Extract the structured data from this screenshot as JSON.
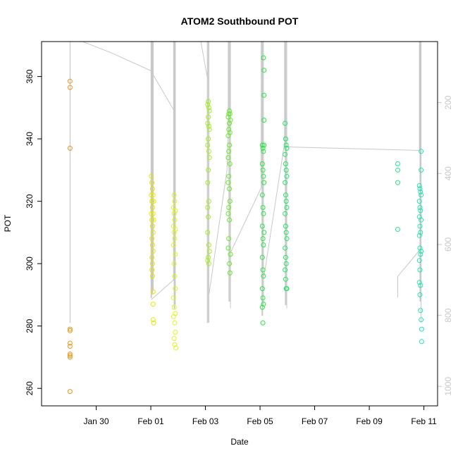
{
  "chart_data": {
    "type": "scatter",
    "title": "ATOM2 Southbound POT",
    "xlabel": "Date",
    "ylabel": "POT",
    "ylabel_right": "",
    "xlim": [
      "2024-01-28T00:00",
      "2024-02-11T12:00"
    ],
    "ylim": [
      254.4,
      371.2
    ],
    "ylim_right": [
      1055,
      28
    ],
    "x_ticks": [
      {
        "x": "2024-01-30",
        "label": "Jan 30"
      },
      {
        "x": "2024-02-01",
        "label": "Feb 01"
      },
      {
        "x": "2024-02-03",
        "label": "Feb 03"
      },
      {
        "x": "2024-02-05",
        "label": "Feb 05"
      },
      {
        "x": "2024-02-07",
        "label": "Feb 07"
      },
      {
        "x": "2024-02-09",
        "label": "Feb 09"
      },
      {
        "x": "2024-02-11",
        "label": "Feb 11"
      }
    ],
    "y_ticks": [
      260,
      280,
      300,
      320,
      340,
      360
    ],
    "y_ticks_right": [
      200,
      400,
      600,
      800,
      1000
    ],
    "grid": false,
    "legend": "none",
    "point_color_note": "points colored by time (orange to cyan)",
    "series": [
      {
        "color": "#e8961e",
        "x": [
          "2024-01-29T01:00",
          "2024-01-29T01:00",
          "2024-01-29T01:00",
          "2024-01-29T01:00",
          "2024-01-29T01:00",
          "2024-01-29T01:00",
          "2024-01-29T01:00",
          "2024-01-29T01:00",
          "2024-01-29T01:00",
          "2024-01-29T01:00",
          "2024-01-29T01:00"
        ],
        "y": [
          358.5,
          356.5,
          337,
          279,
          278.5,
          274.5,
          273.5,
          271,
          270,
          270.5,
          259
        ]
      },
      {
        "color": "#e6e600",
        "x": [
          "2024-02-01T00:30",
          "2024-02-01T00:30",
          "2024-02-01T00:30",
          "2024-02-01T01:00",
          "2024-02-01T01:00",
          "2024-02-01T01:00",
          "2024-02-01T01:00",
          "2024-02-01T01:00",
          "2024-02-01T01:00",
          "2024-02-01T01:30",
          "2024-02-01T01:30",
          "2024-02-01T01:30",
          "2024-02-01T01:30",
          "2024-02-01T01:30",
          "2024-02-01T01:30",
          "2024-02-01T02:00",
          "2024-02-01T02:00",
          "2024-02-01T02:00",
          "2024-02-01T02:00",
          "2024-02-01T02:00",
          "2024-02-01T02:00",
          "2024-02-01T02:00",
          "2024-02-01T02:30",
          "2024-02-01T02:30",
          "2024-02-01T02:30"
        ],
        "y": [
          328,
          322,
          316,
          326,
          320,
          314,
          308,
          302,
          298,
          324,
          318,
          312,
          306,
          300,
          296,
          322,
          316,
          310,
          304,
          291,
          287,
          282,
          320,
          314,
          281
        ]
      },
      {
        "color": "#dcf51e",
        "x": [
          "2024-02-01T20:00",
          "2024-02-01T20:00",
          "2024-02-01T20:00",
          "2024-02-01T20:00",
          "2024-02-01T20:00",
          "2024-02-01T20:30",
          "2024-02-01T20:30",
          "2024-02-01T20:30",
          "2024-02-01T20:30",
          "2024-02-01T20:30",
          "2024-02-01T20:30",
          "2024-02-01T21:00",
          "2024-02-01T21:00",
          "2024-02-01T21:00",
          "2024-02-01T21:00",
          "2024-02-01T21:00",
          "2024-02-01T21:00",
          "2024-02-01T21:30",
          "2024-02-01T21:30",
          "2024-02-01T21:30",
          "2024-02-01T21:30",
          "2024-02-01T21:30",
          "2024-02-01T21:30",
          "2024-02-01T22:00"
        ],
        "y": [
          318,
          312,
          306,
          289,
          283,
          322,
          316,
          310,
          300,
          286,
          276,
          320,
          314,
          308,
          296,
          281,
          274,
          317,
          311,
          303,
          292,
          284,
          278,
          273
        ]
      },
      {
        "color": "#a0f01e",
        "x": [
          "2024-02-03T02:00",
          "2024-02-03T02:00",
          "2024-02-03T02:00",
          "2024-02-03T02:00",
          "2024-02-03T02:00",
          "2024-02-03T02:00",
          "2024-02-03T02:00",
          "2024-02-03T02:30",
          "2024-02-03T02:30",
          "2024-02-03T02:30",
          "2024-02-03T02:30",
          "2024-02-03T02:30",
          "2024-02-03T02:30",
          "2024-02-03T03:00",
          "2024-02-03T03:00",
          "2024-02-03T03:00",
          "2024-02-03T03:00",
          "2024-02-03T03:00",
          "2024-02-03T03:00",
          "2024-02-03T03:30",
          "2024-02-03T03:30",
          "2024-02-03T03:30",
          "2024-02-03T03:30"
        ],
        "y": [
          351,
          345,
          338,
          326,
          318,
          310,
          301,
          352,
          347,
          340,
          330,
          315,
          302,
          350,
          344,
          336,
          320,
          306,
          300,
          349,
          343,
          334,
          304
        ]
      },
      {
        "color": "#64eb28",
        "x": [
          "2024-02-03T20:00",
          "2024-02-03T20:00",
          "2024-02-03T20:00",
          "2024-02-03T20:00",
          "2024-02-03T20:00",
          "2024-02-03T20:00",
          "2024-02-03T20:30",
          "2024-02-03T20:30",
          "2024-02-03T20:30",
          "2024-02-03T20:30",
          "2024-02-03T20:30",
          "2024-02-03T20:30",
          "2024-02-03T21:00",
          "2024-02-03T21:00",
          "2024-02-03T21:00",
          "2024-02-03T21:00",
          "2024-02-03T21:00",
          "2024-02-03T21:00",
          "2024-02-03T21:30",
          "2024-02-03T21:30",
          "2024-02-03T21:30",
          "2024-02-03T21:30",
          "2024-02-03T21:30",
          "2024-02-03T22:00",
          "2024-02-03T22:00"
        ],
        "y": [
          347,
          341,
          334,
          326,
          316,
          305,
          348,
          343,
          336,
          328,
          318,
          308,
          349,
          345,
          338,
          324,
          314,
          300,
          348,
          342,
          332,
          320,
          297,
          346,
          303
        ]
      },
      {
        "color": "#28e646",
        "x": [
          "2024-02-05T02:00",
          "2024-02-05T02:00",
          "2024-02-05T02:00",
          "2024-02-05T02:00",
          "2024-02-05T02:00",
          "2024-02-05T02:00",
          "2024-02-05T02:00",
          "2024-02-05T02:30",
          "2024-02-05T02:30",
          "2024-02-05T02:30",
          "2024-02-05T02:30",
          "2024-02-05T02:30",
          "2024-02-05T02:30",
          "2024-02-05T02:30",
          "2024-02-05T03:00",
          "2024-02-05T03:00",
          "2024-02-05T03:00",
          "2024-02-05T03:00",
          "2024-02-05T03:00",
          "2024-02-05T03:00",
          "2024-02-05T03:00",
          "2024-02-05T03:30",
          "2024-02-05T03:30",
          "2024-02-05T03:30",
          "2024-02-05T03:30",
          "2024-02-05T03:30",
          "2024-02-05T03:30"
        ],
        "y": [
          338,
          332,
          322,
          312,
          302,
          292,
          286,
          337,
          330,
          318,
          308,
          298,
          289,
          281,
          336,
          328,
          316,
          306,
          296,
          287,
          366,
          362,
          354,
          346,
          338,
          326,
          310
        ]
      },
      {
        "color": "#1ee664",
        "x": [
          "2024-02-05T22:00",
          "2024-02-05T22:00",
          "2024-02-05T22:00",
          "2024-02-05T22:00",
          "2024-02-05T22:00",
          "2024-02-05T22:00",
          "2024-02-05T22:30",
          "2024-02-05T22:30",
          "2024-02-05T22:30",
          "2024-02-05T22:30",
          "2024-02-05T22:30",
          "2024-02-05T22:30",
          "2024-02-05T23:00",
          "2024-02-05T23:00",
          "2024-02-05T23:00",
          "2024-02-05T23:00",
          "2024-02-05T23:00",
          "2024-02-05T23:00",
          "2024-02-05T23:30",
          "2024-02-05T23:30",
          "2024-02-05T23:30",
          "2024-02-05T23:30",
          "2024-02-05T23:30"
        ],
        "y": [
          345,
          335,
          326,
          316,
          305,
          298,
          340,
          332,
          322,
          312,
          302,
          295,
          338,
          330,
          320,
          310,
          300,
          292,
          337,
          328,
          318,
          308,
          292
        ]
      },
      {
        "color": "#28e68c",
        "x": [
          "2024-02-10T01:00",
          "2024-02-10T01:00",
          "2024-02-10T01:00",
          "2024-02-10T01:00"
        ],
        "y": [
          332,
          330,
          326,
          311
        ]
      },
      {
        "color": "#1ee6b4",
        "x": [
          "2024-02-10T20:00",
          "2024-02-10T20:00",
          "2024-02-10T20:00",
          "2024-02-10T20:00",
          "2024-02-10T20:00",
          "2024-02-10T20:00",
          "2024-02-10T20:30",
          "2024-02-10T20:30",
          "2024-02-10T20:30",
          "2024-02-10T20:30",
          "2024-02-10T20:30",
          "2024-02-10T20:30",
          "2024-02-10T21:00",
          "2024-02-10T21:00",
          "2024-02-10T21:00",
          "2024-02-10T21:00",
          "2024-02-10T21:00",
          "2024-02-10T21:00",
          "2024-02-10T21:30",
          "2024-02-10T21:30",
          "2024-02-10T21:30",
          "2024-02-10T21:30",
          "2024-02-10T21:30",
          "2024-02-10T21:30",
          "2024-02-10T22:00",
          "2024-02-10T22:00"
        ],
        "y": [
          325,
          320,
          315,
          309,
          301,
          294,
          324,
          318,
          312,
          305,
          298,
          290,
          323,
          317,
          310,
          303,
          293,
          285,
          336,
          330,
          322,
          314,
          304,
          282,
          275,
          279
        ]
      }
    ],
    "profile_lines": [
      {
        "color": "#c8c8c8",
        "x": [
          "2024-01-29T01:00",
          "2024-01-29T01:00",
          "2024-01-29T01:10",
          "2024-01-29T01:10"
        ],
        "y_right": [
          28,
          820,
          820,
          28
        ]
      },
      {
        "color": "#c8c8c8",
        "x": [
          "2024-01-29T12:00",
          "2024-01-30T12:00",
          "2024-02-01T00:00",
          "2024-02-01T20:00"
        ],
        "y_right": [
          28,
          58,
          110,
          220
        ]
      },
      {
        "color": "#c8c8c8",
        "x": [
          "2024-02-01T00:10",
          "2024-02-01T00:10",
          "2024-02-01T00:40",
          "2024-02-01T00:40",
          "2024-02-01T01:10",
          "2024-02-01T01:10",
          "2024-02-01T01:40",
          "2024-02-01T01:40",
          "2024-02-01T02:10",
          "2024-02-01T02:10"
        ],
        "y_right": [
          28,
          750,
          750,
          28,
          28,
          740,
          740,
          28,
          28,
          730
        ]
      },
      {
        "color": "#c8c8c8",
        "x": [
          "2024-02-01T00:30",
          "2024-02-01T20:00",
          "2024-02-01T20:00",
          "2024-02-01T20:30",
          "2024-02-01T20:30",
          "2024-02-01T21:00",
          "2024-02-01T21:00",
          "2024-02-01T21:30",
          "2024-02-01T21:30"
        ],
        "y_right": [
          755,
          700,
          28,
          28,
          780,
          780,
          28,
          28,
          770
        ]
      },
      {
        "color": "#c8c8c8",
        "x": [
          "2024-02-01T22:00",
          "2024-02-02T20:00",
          "2024-02-03T01:30"
        ],
        "y_right": [
          28,
          28,
          128
        ]
      },
      {
        "color": "#c8c8c8",
        "x": [
          "2024-02-03T01:40",
          "2024-02-03T01:40",
          "2024-02-03T02:20",
          "2024-02-03T02:20",
          "2024-02-03T03:00",
          "2024-02-03T03:00"
        ],
        "y_right": [
          28,
          820,
          820,
          28,
          28,
          820
        ]
      },
      {
        "color": "#c8c8c8",
        "x": [
          "2024-02-03T03:10",
          "2024-02-03T19:00",
          "2024-02-03T20:00",
          "2024-02-03T20:00",
          "2024-02-03T20:40",
          "2024-02-03T20:40",
          "2024-02-03T21:20",
          "2024-02-03T21:20",
          "2024-02-03T22:00",
          "2024-02-03T22:00"
        ],
        "y_right": [
          740,
          390,
          255,
          28,
          28,
          760,
          760,
          28,
          28,
          780
        ]
      },
      {
        "color": "#c8c8c8",
        "x": [
          "2024-02-03T22:30",
          "2024-02-05T01:00",
          "2024-02-05T01:00",
          "2024-02-05T01:40",
          "2024-02-05T01:40",
          "2024-02-05T02:20",
          "2024-02-05T02:20",
          "2024-02-05T03:00",
          "2024-02-05T03:00"
        ],
        "y_right": [
          620,
          440,
          28,
          28,
          800,
          800,
          28,
          28,
          770
        ]
      },
      {
        "color": "#c8c8c8",
        "x": [
          "2024-02-05T03:30",
          "2024-02-05T21:00",
          "2024-02-05T21:30",
          "2024-02-05T21:30",
          "2024-02-05T22:10",
          "2024-02-05T22:10",
          "2024-02-05T22:50",
          "2024-02-05T22:50",
          "2024-02-05T23:30",
          "2024-02-05T23:30"
        ],
        "y_right": [
          690,
          325,
          325,
          28,
          28,
          770,
          770,
          28,
          28,
          780
        ]
      },
      {
        "color": "#c8c8c8",
        "x": [
          "2024-02-06T00:00",
          "2024-02-10T20:00",
          "2024-02-10T20:00",
          "2024-02-10T20:30",
          "2024-02-10T20:30",
          "2024-02-10T21:00",
          "2024-02-10T21:00",
          "2024-02-10T21:30",
          "2024-02-10T21:30"
        ],
        "y_right": [
          325,
          335,
          28,
          28,
          760,
          760,
          28,
          28,
          820
        ]
      },
      {
        "color": "#c8c8c8",
        "x": [
          "2024-02-10T01:00",
          "2024-02-10T01:00",
          "2024-02-10T20:00"
        ],
        "y_right": [
          750,
          690,
          617
        ]
      }
    ]
  }
}
